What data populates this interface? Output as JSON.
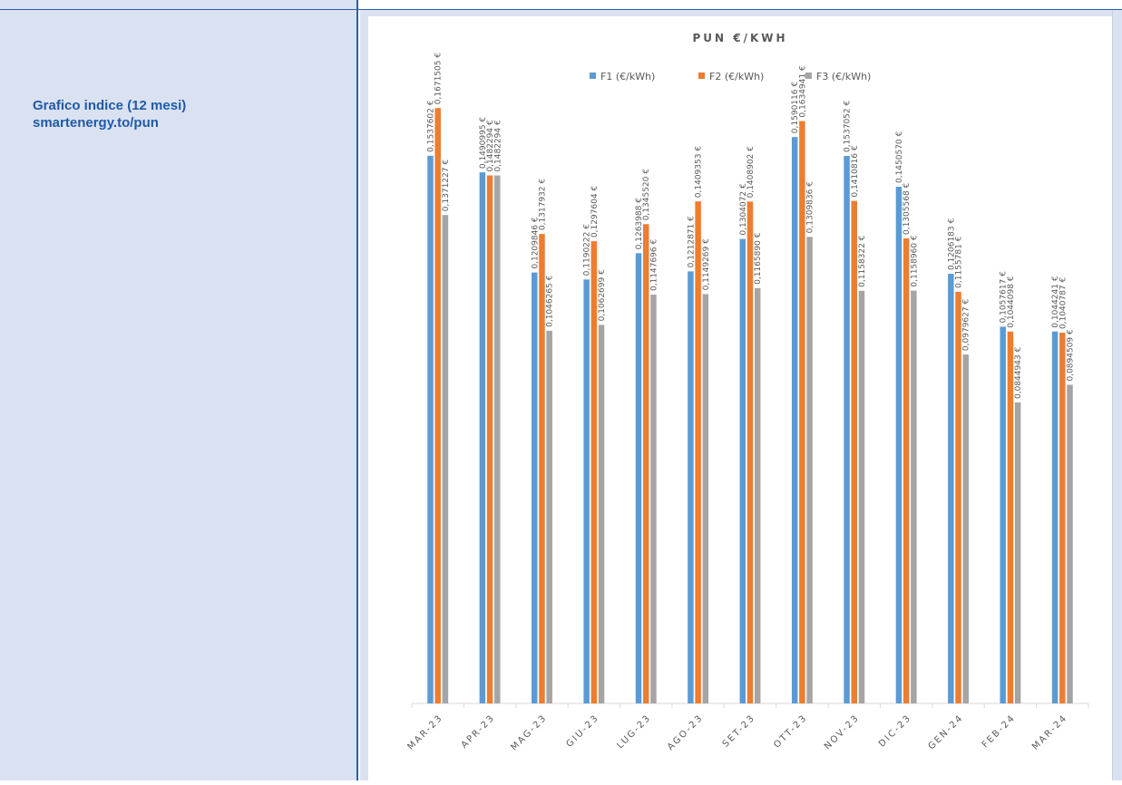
{
  "sidebar": {
    "caption_line1": "Grafico indice (12 mesi)",
    "caption_line2": "smartenergy.to/pun"
  },
  "colors": {
    "F1": "#5b9bd5",
    "F2": "#ed7d31",
    "F3": "#a5a5a5",
    "accent": "#1f5aa6"
  },
  "chart_data": {
    "type": "bar",
    "title": "PUN €/KWH",
    "legend_position": "top",
    "ylim": [
      0,
      0.17
    ],
    "categories": [
      "MAR-23",
      "APR-23",
      "MAG-23",
      "GIU-23",
      "LUG-23",
      "AGO-23",
      "SET-23",
      "OTT-23",
      "NOV-23",
      "DIC-23",
      "GEN-24",
      "FEB-24",
      "MAR-24"
    ],
    "series": [
      {
        "name": "F1  (€/kWh)",
        "values": [
          0.1537602,
          0.1490995,
          0.1209846,
          0.1190222,
          0.1263988,
          0.1212871,
          0.1304072,
          0.1590116,
          0.1537052,
          0.145057,
          0.1206183,
          0.1057617,
          0.1044241
        ],
        "labels": [
          "0,1537602 €",
          "0,1490995 €",
          "0,1209846 €",
          "0,1190222 €",
          "0,1263988 €",
          "0,1212871 €",
          "0,1304072 €",
          "0,1590116 €",
          "0,1537052 €",
          "0,1450570 €",
          "0,1206183 €",
          "0,1057617 €",
          "0,1044241 €"
        ]
      },
      {
        "name": "F2  (€/kWh)",
        "values": [
          0.1671505,
          0.1482294,
          0.1317932,
          0.1297604,
          0.134552,
          0.1409353,
          0.1408902,
          0.1634941,
          0.1410816,
          0.1305568,
          0.1155781,
          0.1044098,
          0.1040787
        ],
        "labels": [
          "0,1671505 €",
          "0,1482294 €",
          "0,1317932 €",
          "0,1297604 €",
          "0,1345520 €",
          "0,1409353 €",
          "0,1408902 €",
          "0,1634941 €",
          "0,1410816 €",
          "0,1305568 €",
          "0,1155781 €",
          "0,1044098 €",
          "0,1040787 €"
        ]
      },
      {
        "name": "F3  (€/kWh)",
        "values": [
          0.1371227,
          0.1482294,
          0.1046265,
          0.1062699,
          0.1147696,
          0.1149269,
          0.116589,
          0.1309836,
          0.1158322,
          0.115896,
          0.0979627,
          0.0844943,
          0.0894509
        ],
        "labels": [
          "0,1371227 €",
          "0,1482294 €",
          "0,1046265 €",
          "0,1062699 €",
          "0,1147696 €",
          "0,1149269 €",
          "0,1165890 €",
          "0,1309836 €",
          "0,1158322 €",
          "0,1158960 €",
          "0,0979627 €",
          "0,0844943 €",
          "0,0894509 €"
        ]
      }
    ]
  }
}
